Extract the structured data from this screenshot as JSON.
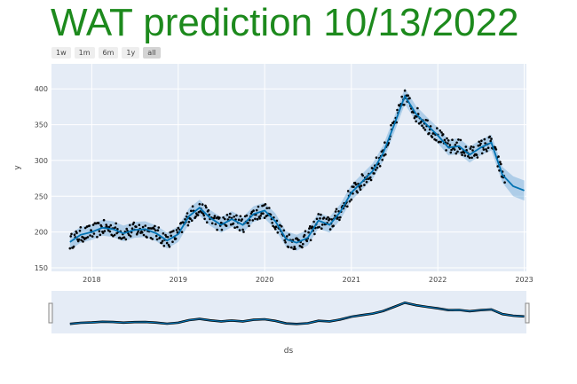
{
  "title": "WAT prediction 10/13/2022",
  "range_buttons": [
    "1w",
    "1m",
    "6m",
    "1y",
    "all"
  ],
  "active_range": "all",
  "colors": {
    "title": "#1d8a1d",
    "forecast_line": "#0072B2",
    "band": "#6aa9d8",
    "points": "#000000",
    "plot_bg": "#e5ecf6"
  },
  "chart_data": {
    "type": "line",
    "title": "",
    "xlabel": "ds",
    "ylabel": "y",
    "x_ticks": [
      "2018",
      "2019",
      "2020",
      "2021",
      "2022",
      "2023"
    ],
    "y_ticks": [
      150,
      200,
      250,
      300,
      350,
      400
    ],
    "xlim": [
      "2017-07-15",
      "2023-01-10"
    ],
    "ylim": [
      145,
      435
    ],
    "grid": true,
    "series": [
      {
        "role": "forecast-yhat",
        "points": [
          [
            "2017-10-01",
            186
          ],
          [
            "2017-11-15",
            196
          ],
          [
            "2018-01-01",
            200
          ],
          [
            "2018-02-15",
            206
          ],
          [
            "2018-04-01",
            204
          ],
          [
            "2018-05-15",
            198
          ],
          [
            "2018-07-01",
            203
          ],
          [
            "2018-08-15",
            204
          ],
          [
            "2018-10-01",
            198
          ],
          [
            "2018-11-15",
            188
          ],
          [
            "2019-01-01",
            197
          ],
          [
            "2019-02-15",
            222
          ],
          [
            "2019-04-01",
            234
          ],
          [
            "2019-05-15",
            220
          ],
          [
            "2019-07-01",
            210
          ],
          [
            "2019-08-15",
            218
          ],
          [
            "2019-10-01",
            210
          ],
          [
            "2019-11-15",
            225
          ],
          [
            "2020-01-01",
            230
          ],
          [
            "2020-02-15",
            215
          ],
          [
            "2020-04-01",
            190
          ],
          [
            "2020-05-15",
            185
          ],
          [
            "2020-07-01",
            192
          ],
          [
            "2020-08-15",
            216
          ],
          [
            "2020-10-01",
            210
          ],
          [
            "2020-11-15",
            228
          ],
          [
            "2021-01-01",
            255
          ],
          [
            "2021-02-15",
            270
          ],
          [
            "2021-04-01",
            285
          ],
          [
            "2021-05-15",
            310
          ],
          [
            "2021-07-01",
            350
          ],
          [
            "2021-08-15",
            390
          ],
          [
            "2021-10-01",
            365
          ],
          [
            "2021-11-15",
            350
          ],
          [
            "2022-01-01",
            335
          ],
          [
            "2022-02-15",
            318
          ],
          [
            "2022-04-01",
            320
          ],
          [
            "2022-05-15",
            308
          ],
          [
            "2022-07-01",
            318
          ],
          [
            "2022-08-15",
            325
          ],
          [
            "2022-10-01",
            280
          ],
          [
            "2022-11-15",
            264
          ],
          [
            "2023-01-01",
            258
          ]
        ]
      }
    ]
  }
}
